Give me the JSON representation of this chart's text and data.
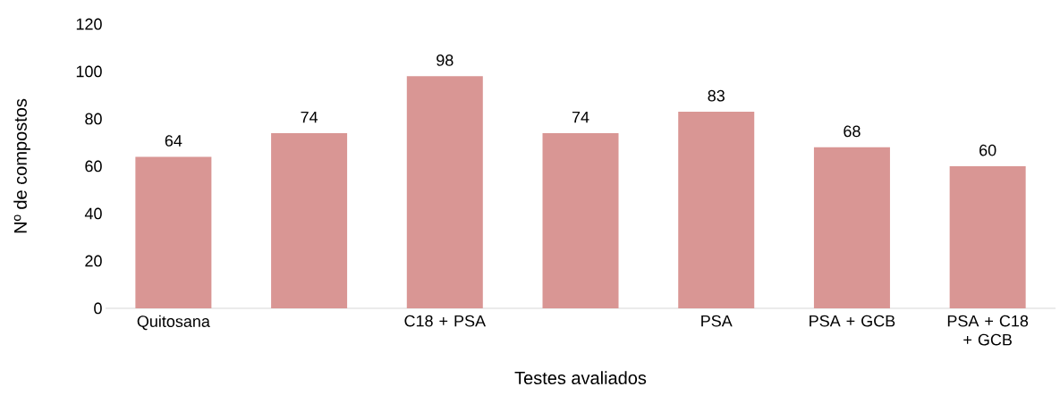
{
  "chart_data": {
    "type": "bar",
    "xlabel": "Testes avaliados",
    "ylabel": "Nº de compostos",
    "categories": [
      "Quitosana",
      null,
      "C18 + PSA",
      null,
      "PSA",
      "PSA + GCB",
      "PSA + C18 + GCB"
    ],
    "values": [
      64,
      74,
      98,
      74,
      83,
      68,
      60
    ],
    "color": "#d99694",
    "ylim": [
      0,
      120
    ],
    "yticks": [
      0,
      20,
      40,
      60,
      80,
      100,
      120
    ],
    "data_labels": true
  }
}
